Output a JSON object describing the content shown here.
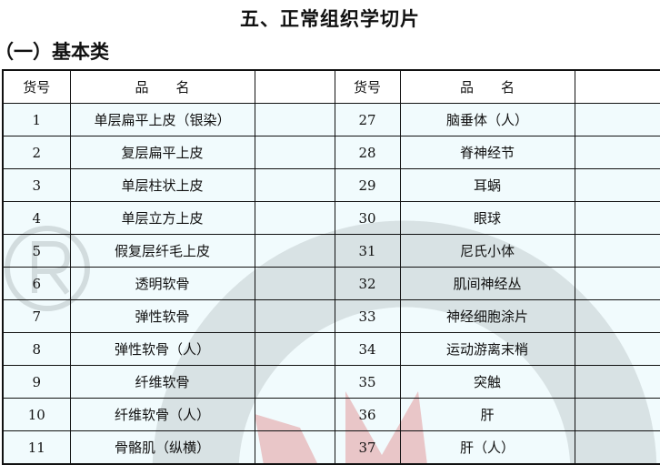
{
  "title": "五、正常组织学切片",
  "section": "（一）基本类",
  "table": {
    "headers": [
      "货号",
      "品　　名",
      "",
      "货号",
      "品　　名",
      ""
    ],
    "rows": [
      [
        "1",
        "单层扁平上皮（银染）",
        "",
        "27",
        "脑垂体（人）",
        ""
      ],
      [
        "2",
        "复层扁平上皮",
        "",
        "28",
        "脊神经节",
        ""
      ],
      [
        "3",
        "单层柱状上皮",
        "",
        "29",
        "耳蜗",
        ""
      ],
      [
        "4",
        "单层立方上皮",
        "",
        "30",
        "眼球",
        ""
      ],
      [
        "5",
        "假复层纤毛上皮",
        "",
        "31",
        "尼氏小体",
        ""
      ],
      [
        "6",
        "透明软骨",
        "",
        "32",
        "肌间神经丛",
        ""
      ],
      [
        "7",
        "弹性软骨",
        "",
        "33",
        "神经细胞涂片",
        ""
      ],
      [
        "8",
        "弹性软骨（人）",
        "",
        "34",
        "运动游离末梢",
        ""
      ],
      [
        "9",
        "纤维软骨",
        "",
        "35",
        "突触",
        ""
      ],
      [
        "10",
        "纤维软骨（人）",
        "",
        "36",
        "肝",
        ""
      ],
      [
        "11",
        "骨骼肌（纵横）",
        "",
        "37",
        "肝（人）",
        ""
      ]
    ]
  },
  "watermark": {
    "ring_color": "#9a9a9a",
    "accent_color": "#e23a3a",
    "symbol": "®"
  }
}
